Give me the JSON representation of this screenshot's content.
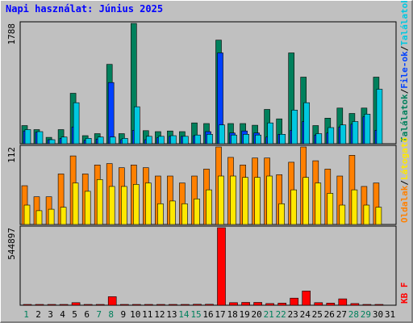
{
  "title": "Napi használat: Június 2025",
  "colors": {
    "background": "#c0c0c0",
    "plot_border": "#808080",
    "visits": "#00805c",
    "files": "#0040ff",
    "hits": "#00c8e0",
    "pages": "#ff8000",
    "sites": "#ffe800",
    "kbytes": "#ff0000",
    "day_weekend": "#00805c",
    "day_weekday": "#000000"
  },
  "chart_data": [
    {
      "type": "bar",
      "panel": "top",
      "ymax_label": "1788",
      "ymax": 1788,
      "right_labels": [
        {
          "text": "Találatok",
          "color": "#00805c"
        },
        {
          "text": "/",
          "color": "#000000"
        },
        {
          "text": "File-ok",
          "color": "#0040ff"
        },
        {
          "text": "/",
          "color": "#000000"
        },
        {
          "text": "Találatok",
          "color": "#00c8e0"
        }
      ],
      "categories": [
        "1",
        "2",
        "3",
        "4",
        "5",
        "6",
        "7",
        "8",
        "9",
        "10",
        "11",
        "12",
        "13",
        "14",
        "15",
        "16",
        "17",
        "18",
        "19",
        "20",
        "21",
        "22",
        "23",
        "24",
        "25",
        "26",
        "27",
        "28",
        "29",
        "30",
        "31"
      ],
      "series": [
        {
          "name": "Találatok",
          "color": "#00805c",
          "values": [
            270,
            210,
            95,
            210,
            750,
            120,
            150,
            1180,
            150,
            1788,
            195,
            180,
            190,
            180,
            310,
            300,
            1540,
            300,
            300,
            275,
            510,
            370,
            1350,
            990,
            270,
            380,
            530,
            450,
            530,
            990,
            0
          ]
        },
        {
          "name": "File-ok",
          "color": "#0040ff",
          "values": [
            190,
            170,
            60,
            80,
            250,
            50,
            70,
            910,
            60,
            200,
            60,
            90,
            110,
            110,
            120,
            180,
            1350,
            160,
            190,
            160,
            100,
            140,
            200,
            330,
            130,
            160,
            250,
            290,
            400,
            200,
            0
          ]
        },
        {
          "name": "Találatok",
          "color": "#00c8e0",
          "values": [
            210,
            180,
            60,
            100,
            610,
            80,
            100,
            100,
            80,
            550,
            110,
            110,
            120,
            110,
            130,
            140,
            280,
            130,
            140,
            130,
            310,
            140,
            500,
            610,
            150,
            240,
            280,
            330,
            440,
            810,
            0
          ]
        }
      ]
    },
    {
      "type": "bar",
      "panel": "middle",
      "ymax_label": "112",
      "ymax": 112,
      "right_labels": [
        {
          "text": "Oldalak",
          "color": "#ff8000"
        },
        {
          "text": "/",
          "color": "#000000"
        },
        {
          "text": "Látogató",
          "color": "#ffe800"
        }
      ],
      "categories": [
        "1",
        "2",
        "3",
        "4",
        "5",
        "6",
        "7",
        "8",
        "9",
        "10",
        "11",
        "12",
        "13",
        "14",
        "15",
        "16",
        "17",
        "18",
        "19",
        "20",
        "21",
        "22",
        "23",
        "24",
        "25",
        "26",
        "27",
        "28",
        "29",
        "30",
        "31"
      ],
      "series": [
        {
          "name": "Oldalak",
          "color": "#ff8000",
          "values": [
            56,
            40,
            40,
            73,
            99,
            73,
            86,
            88,
            82,
            86,
            82,
            70,
            70,
            60,
            70,
            80,
            112,
            97,
            86,
            96,
            96,
            72,
            90,
            112,
            92,
            80,
            70,
            100,
            55,
            60,
            0
          ]
        },
        {
          "name": "Látogató",
          "color": "#ffe800",
          "values": [
            28,
            20,
            22,
            25,
            60,
            48,
            65,
            55,
            55,
            58,
            60,
            30,
            34,
            30,
            37,
            50,
            70,
            70,
            68,
            68,
            70,
            30,
            50,
            68,
            60,
            45,
            28,
            50,
            28,
            25,
            0
          ]
        }
      ]
    },
    {
      "type": "bar",
      "panel": "bottom",
      "ymax_label": "544897",
      "ymax": 544897,
      "right_labels": [
        {
          "text": "KB F",
          "color": "#ff0000"
        }
      ],
      "categories": [
        "1",
        "2",
        "3",
        "4",
        "5",
        "6",
        "7",
        "8",
        "9",
        "10",
        "11",
        "12",
        "13",
        "14",
        "15",
        "16",
        "17",
        "18",
        "19",
        "20",
        "21",
        "22",
        "23",
        "24",
        "25",
        "26",
        "27",
        "28",
        "29",
        "30",
        "31"
      ],
      "series": [
        {
          "name": "KB F",
          "color": "#ff0000",
          "values": [
            3000,
            2500,
            2000,
            3000,
            18000,
            4000,
            3000,
            60000,
            2500,
            3000,
            2500,
            3000,
            3000,
            2500,
            7000,
            7000,
            544897,
            18000,
            20000,
            20000,
            12000,
            15000,
            50000,
            100000,
            18000,
            15000,
            45000,
            12000,
            4000,
            3000,
            0
          ]
        }
      ]
    }
  ],
  "days": [
    {
      "label": "1",
      "weekend": true
    },
    {
      "label": "2",
      "weekend": false
    },
    {
      "label": "3",
      "weekend": false
    },
    {
      "label": "4",
      "weekend": false
    },
    {
      "label": "5",
      "weekend": false
    },
    {
      "label": "6",
      "weekend": false
    },
    {
      "label": "7",
      "weekend": true
    },
    {
      "label": "8",
      "weekend": true
    },
    {
      "label": "9",
      "weekend": false
    },
    {
      "label": "10",
      "weekend": false
    },
    {
      "label": "11",
      "weekend": false
    },
    {
      "label": "12",
      "weekend": false
    },
    {
      "label": "13",
      "weekend": false
    },
    {
      "label": "14",
      "weekend": true
    },
    {
      "label": "15",
      "weekend": true
    },
    {
      "label": "16",
      "weekend": false
    },
    {
      "label": "17",
      "weekend": false
    },
    {
      "label": "18",
      "weekend": false
    },
    {
      "label": "19",
      "weekend": false
    },
    {
      "label": "20",
      "weekend": false
    },
    {
      "label": "21",
      "weekend": true
    },
    {
      "label": "22",
      "weekend": true
    },
    {
      "label": "23",
      "weekend": false
    },
    {
      "label": "24",
      "weekend": false
    },
    {
      "label": "25",
      "weekend": false
    },
    {
      "label": "26",
      "weekend": false
    },
    {
      "label": "27",
      "weekend": false
    },
    {
      "label": "28",
      "weekend": true
    },
    {
      "label": "29",
      "weekend": true
    },
    {
      "label": "30",
      "weekend": false
    },
    {
      "label": "31",
      "weekend": false
    }
  ]
}
